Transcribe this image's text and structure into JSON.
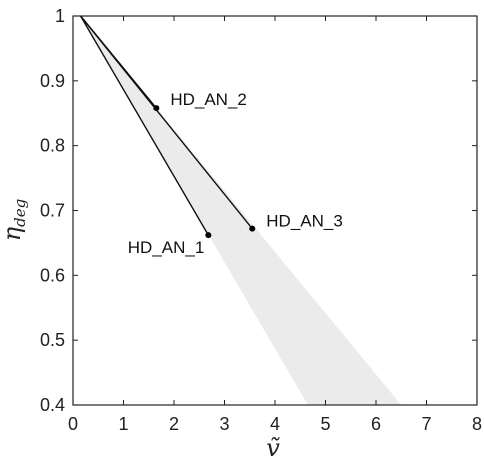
{
  "chart_data": {
    "type": "line",
    "xlabel": "ṽ",
    "ylabel": "η",
    "ylabel_subscript": "deg",
    "xlim": [
      0,
      8
    ],
    "ylim": [
      0.4,
      1
    ],
    "xticks": [
      0,
      1,
      2,
      3,
      4,
      5,
      6,
      7,
      8
    ],
    "yticks": [
      0.4,
      0.5,
      0.6,
      0.7,
      0.8,
      0.9,
      1
    ],
    "ytick_labels": [
      "0.4",
      "0.5",
      "0.6",
      "0.7",
      "0.8",
      "0.9",
      "1"
    ],
    "grid": false,
    "shaded_region": {
      "color": "#ebebeb",
      "polygon": [
        {
          "x": 0.15,
          "y": 1.0
        },
        {
          "x": 4.65,
          "y": 0.4
        },
        {
          "x": 6.5,
          "y": 0.4
        }
      ]
    },
    "series": [
      {
        "label": "HD_AN_1",
        "x": [
          0.15,
          2.68
        ],
        "y": [
          1.0,
          0.662
        ]
      },
      {
        "label": "HD_AN_2",
        "x": [
          0.15,
          1.65
        ],
        "y": [
          1.0,
          0.858
        ]
      },
      {
        "label": "HD_AN_3",
        "x": [
          0.15,
          3.55
        ],
        "y": [
          1.0,
          0.672
        ]
      }
    ],
    "line_color": "#111111",
    "point_color": "#000000"
  }
}
